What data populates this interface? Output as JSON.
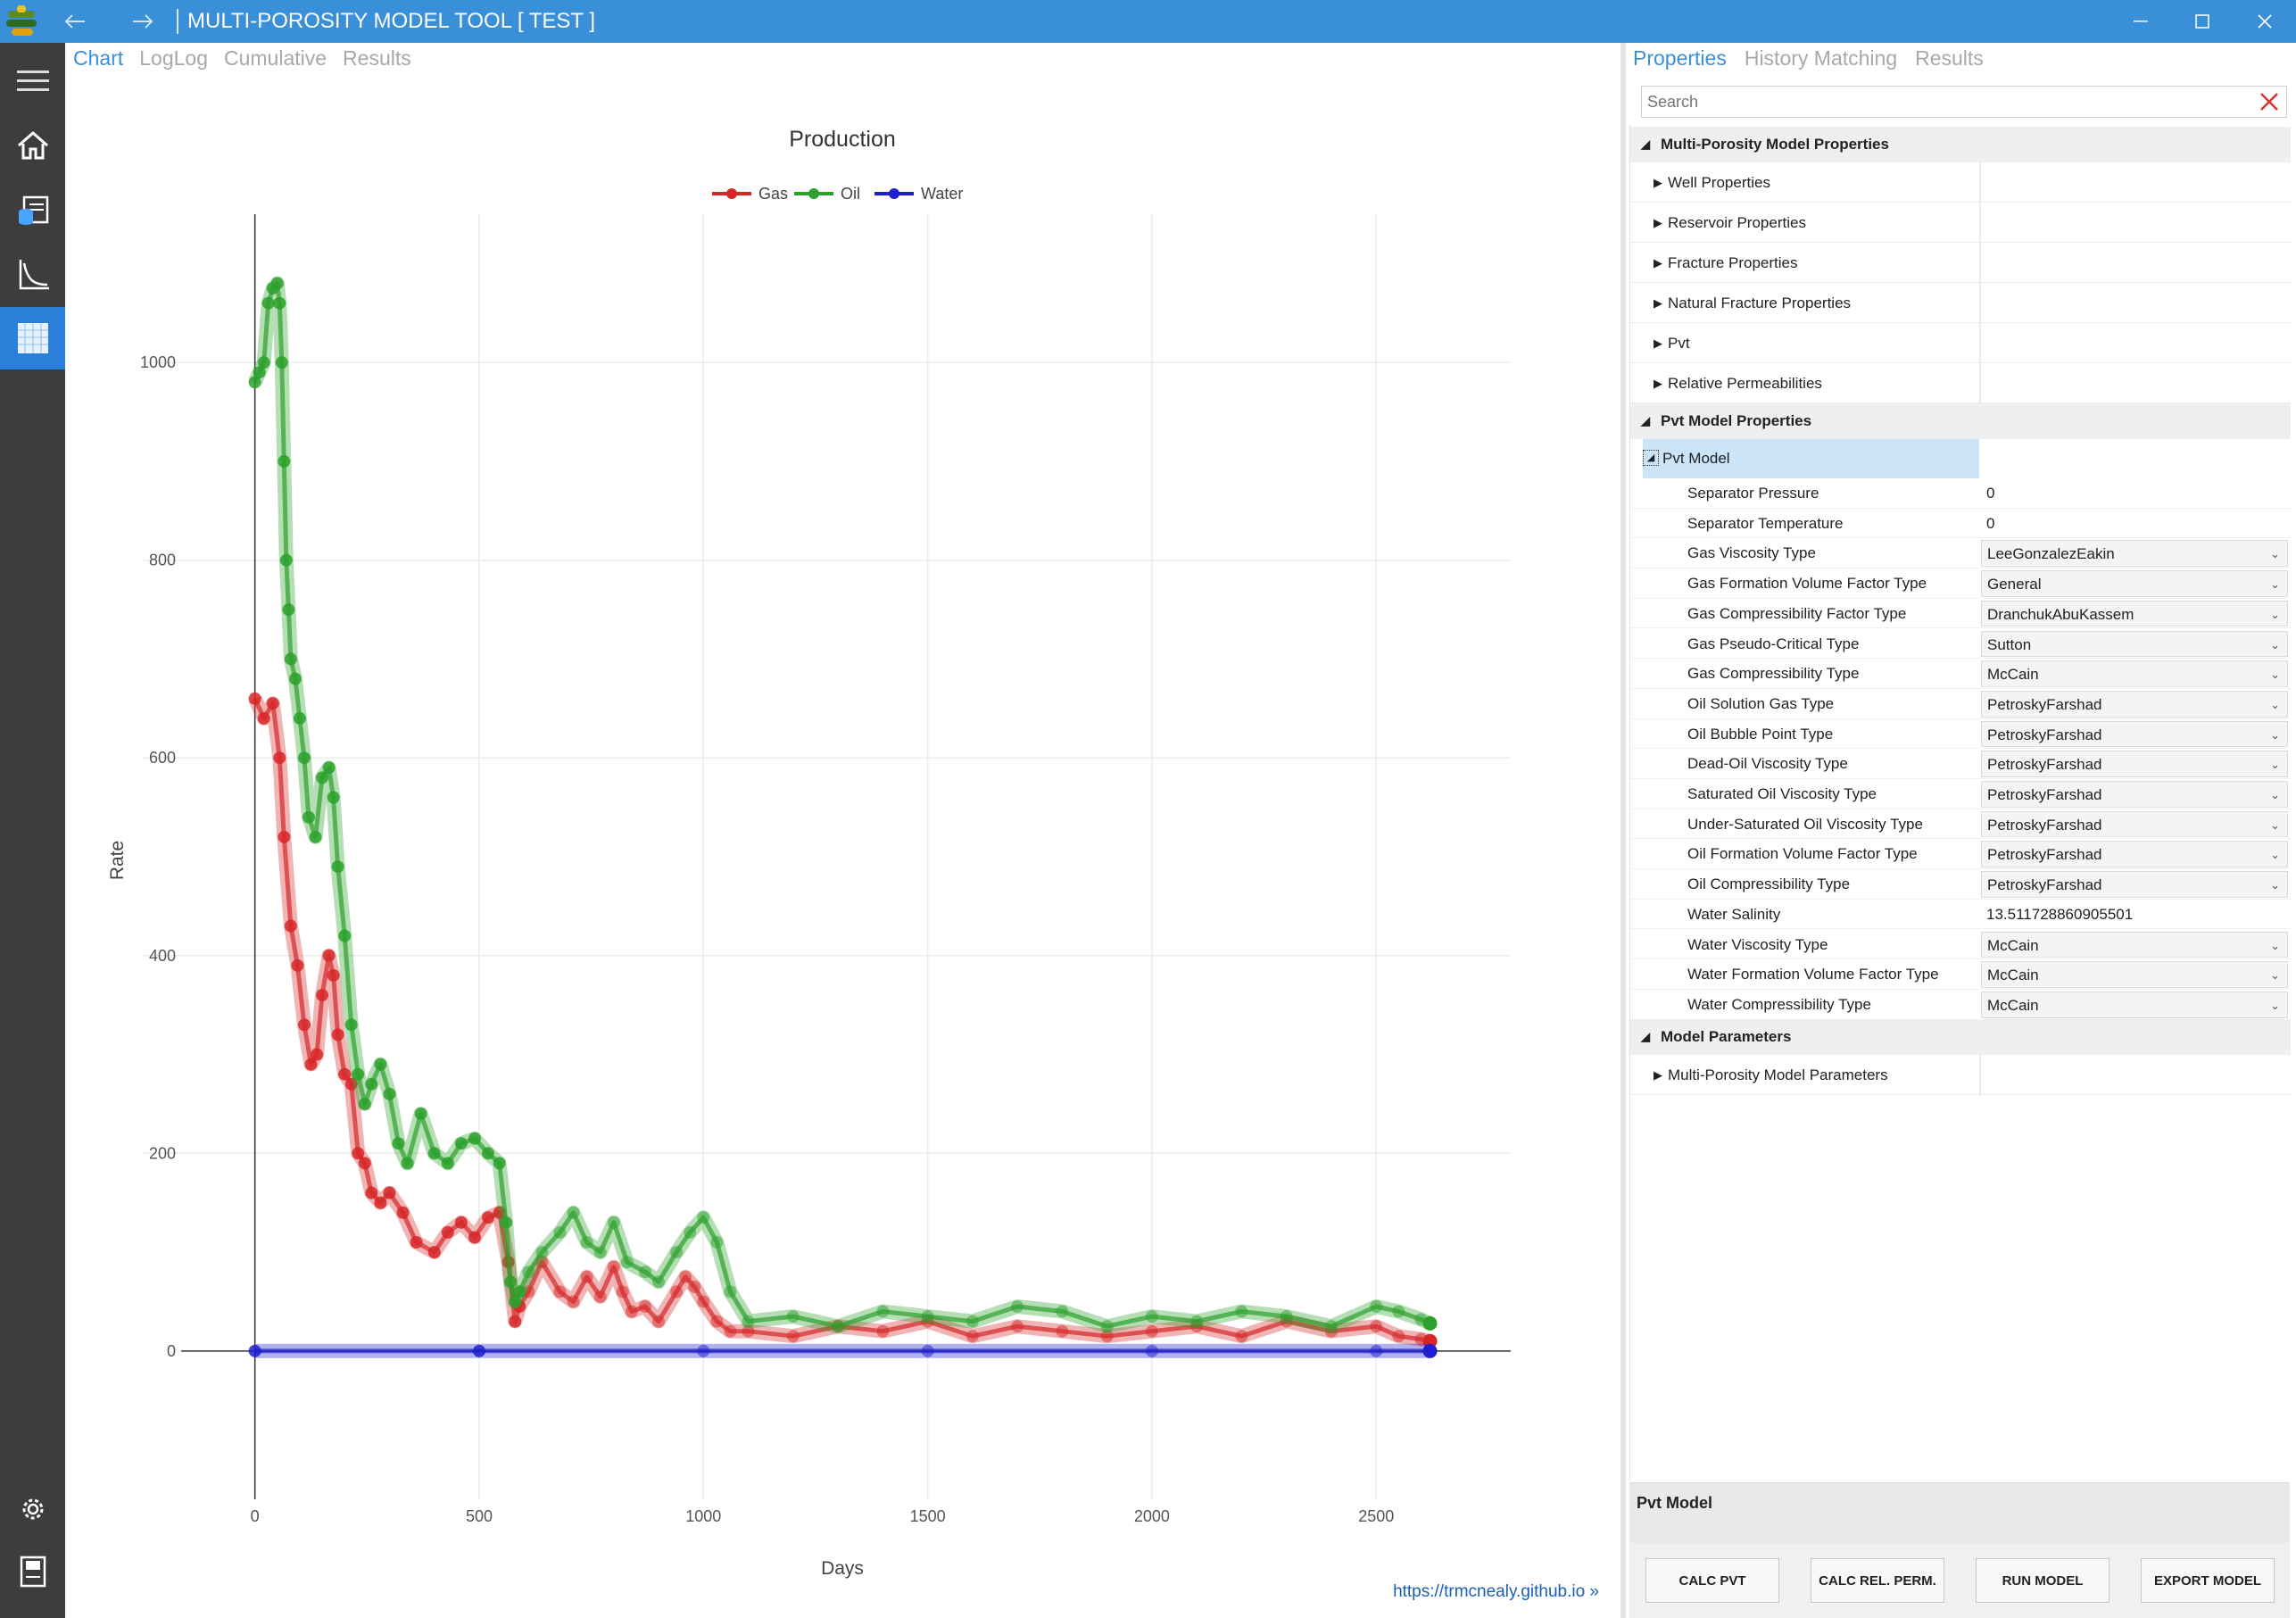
{
  "window": {
    "title": "MULTI-POROSITY MODEL TOOL [ TEST ]"
  },
  "sidebar": {
    "icons": [
      "menu-icon",
      "home-icon",
      "database-icon",
      "chart-axes-icon",
      "table-grid-icon",
      "settings-icon",
      "document-icon"
    ]
  },
  "chart_tabs": [
    "Chart",
    "LogLog",
    "Cumulative",
    "Results"
  ],
  "chart_data": {
    "type": "scatter",
    "title": "Production",
    "xlabel": "Days",
    "ylabel": "Rate",
    "xlim": [
      -250,
      2800
    ],
    "ylim": [
      -150,
      1150
    ],
    "xticks": [
      0,
      500,
      1000,
      1500,
      2000,
      2500
    ],
    "yticks": [
      0,
      200,
      400,
      600,
      800,
      1000
    ],
    "grid": true,
    "legend": "top-center",
    "series": [
      {
        "name": "Gas",
        "color": "#d62728",
        "x": [
          0,
          20,
          40,
          55,
          65,
          80,
          95,
          110,
          125,
          138,
          150,
          165,
          175,
          185,
          200,
          215,
          230,
          245,
          260,
          280,
          300,
          330,
          360,
          400,
          430,
          460,
          490,
          520,
          545,
          565,
          580,
          590,
          610,
          640,
          680,
          710,
          740,
          770,
          800,
          820,
          840,
          870,
          900,
          940,
          960,
          980,
          1000,
          1030,
          1060,
          1100,
          1200,
          1300,
          1400,
          1500,
          1600,
          1700,
          1800,
          1900,
          2000,
          2100,
          2200,
          2300,
          2400,
          2500,
          2550,
          2600,
          2620
        ],
        "y": [
          660,
          640,
          655,
          600,
          520,
          430,
          390,
          330,
          290,
          300,
          360,
          400,
          380,
          320,
          280,
          270,
          200,
          190,
          160,
          150,
          160,
          140,
          110,
          100,
          120,
          130,
          115,
          135,
          140,
          90,
          30,
          45,
          60,
          90,
          60,
          50,
          75,
          55,
          85,
          60,
          40,
          45,
          30,
          60,
          75,
          65,
          50,
          30,
          20,
          20,
          15,
          25,
          20,
          30,
          15,
          25,
          20,
          15,
          20,
          25,
          15,
          30,
          20,
          25,
          15,
          12,
          10
        ]
      },
      {
        "name": "Oil",
        "color": "#2ca02c",
        "x": [
          0,
          10,
          20,
          30,
          40,
          50,
          55,
          60,
          65,
          70,
          75,
          80,
          90,
          100,
          110,
          120,
          135,
          150,
          165,
          175,
          185,
          200,
          215,
          230,
          245,
          260,
          280,
          300,
          320,
          340,
          370,
          400,
          430,
          460,
          490,
          520,
          545,
          560,
          570,
          580,
          590,
          610,
          640,
          680,
          710,
          740,
          770,
          800,
          830,
          870,
          900,
          940,
          970,
          1000,
          1030,
          1060,
          1100,
          1200,
          1300,
          1400,
          1500,
          1600,
          1700,
          1800,
          1900,
          2000,
          2100,
          2200,
          2300,
          2400,
          2500,
          2550,
          2600,
          2620
        ],
        "y": [
          980,
          990,
          1000,
          1060,
          1075,
          1080,
          1060,
          1000,
          900,
          800,
          750,
          700,
          680,
          640,
          600,
          540,
          520,
          580,
          590,
          560,
          490,
          420,
          330,
          280,
          250,
          270,
          290,
          260,
          210,
          190,
          240,
          200,
          190,
          210,
          215,
          200,
          190,
          130,
          70,
          50,
          60,
          80,
          100,
          120,
          140,
          110,
          100,
          130,
          90,
          80,
          70,
          100,
          120,
          135,
          110,
          60,
          30,
          35,
          25,
          40,
          35,
          30,
          45,
          40,
          25,
          35,
          30,
          40,
          35,
          25,
          45,
          40,
          32,
          28
        ]
      },
      {
        "name": "Water",
        "color": "#1f1fcf",
        "x": [
          0,
          500,
          1000,
          1500,
          2000,
          2500,
          2620
        ],
        "y": [
          0,
          0,
          0,
          0,
          0,
          0,
          0
        ]
      }
    ]
  },
  "footer_link": "https://trmcnealy.github.io »",
  "props_tabs": [
    "Properties",
    "History Matching",
    "Results"
  ],
  "search_placeholder": "Search",
  "grid": {
    "cat1": "Multi-Porosity Model Properties",
    "cat1_items": [
      "Well Properties",
      "Reservoir Properties",
      "Fracture Properties",
      "Natural Fracture Properties",
      "Pvt",
      "Relative Permeabilities"
    ],
    "cat2": "Pvt Model Properties",
    "pvt_model": "Pvt Model",
    "rows": [
      {
        "label": "Separator Pressure",
        "value": "0",
        "select": false
      },
      {
        "label": "Separator Temperature",
        "value": "0",
        "select": false
      },
      {
        "label": "Gas Viscosity Type",
        "value": "LeeGonzalezEakin",
        "select": true
      },
      {
        "label": "Gas Formation Volume Factor Type",
        "value": "General",
        "select": true
      },
      {
        "label": "Gas Compressibility Factor Type",
        "value": "DranchukAbuKassem",
        "select": true
      },
      {
        "label": "Gas Pseudo-Critical Type",
        "value": "Sutton",
        "select": true
      },
      {
        "label": "Gas Compressibility Type",
        "value": "McCain",
        "select": true
      },
      {
        "label": "Oil Solution Gas Type",
        "value": "PetroskyFarshad",
        "select": true
      },
      {
        "label": "Oil Bubble Point Type",
        "value": "PetroskyFarshad",
        "select": true
      },
      {
        "label": "Dead-Oil Viscosity Type",
        "value": "PetroskyFarshad",
        "select": true
      },
      {
        "label": "Saturated Oil Viscosity Type",
        "value": "PetroskyFarshad",
        "select": true
      },
      {
        "label": "Under-Saturated Oil Viscosity Type",
        "value": "PetroskyFarshad",
        "select": true
      },
      {
        "label": "Oil Formation Volume Factor Type",
        "value": "PetroskyFarshad",
        "select": true
      },
      {
        "label": "Oil Compressibility Type",
        "value": "PetroskyFarshad",
        "select": true
      },
      {
        "label": "Water Salinity",
        "value": "13.511728860905501",
        "select": false
      },
      {
        "label": "Water Viscosity Type",
        "value": "McCain",
        "select": true
      },
      {
        "label": "Water Formation Volume Factor Type",
        "value": "McCain",
        "select": true
      },
      {
        "label": "Water Compressibility Type",
        "value": "McCain",
        "select": true
      }
    ],
    "cat3": "Model Parameters",
    "cat3_items": [
      "Multi-Porosity Model Parameters"
    ]
  },
  "description": {
    "title": "Pvt Model"
  },
  "buttons": [
    "CALC PVT",
    "CALC REL. PERM.",
    "RUN MODEL",
    "EXPORT MODEL"
  ]
}
